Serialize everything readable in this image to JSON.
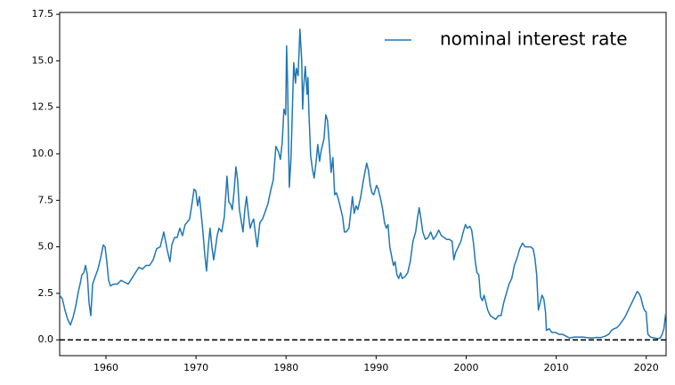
{
  "chart_data": {
    "type": "line",
    "x": [
      1954.86,
      1955.16,
      1955.45,
      1955.75,
      1956.05,
      1956.34,
      1956.64,
      1956.94,
      1957.13,
      1957.33,
      1957.53,
      1957.73,
      1957.93,
      1958.12,
      1958.32,
      1958.52,
      1958.81,
      1959.11,
      1959.41,
      1959.7,
      1959.9,
      1960.1,
      1960.3,
      1960.49,
      1960.89,
      1961.28,
      1961.68,
      1962.07,
      1962.47,
      1962.87,
      1963.26,
      1963.66,
      1964.05,
      1964.45,
      1964.84,
      1965.24,
      1965.63,
      1966.03,
      1966.42,
      1966.62,
      1966.82,
      1967.11,
      1967.31,
      1967.61,
      1967.9,
      1968.2,
      1968.5,
      1968.79,
      1968.99,
      1969.29,
      1969.58,
      1969.78,
      1969.98,
      1970.18,
      1970.38,
      1970.57,
      1970.77,
      1970.97,
      1971.17,
      1971.36,
      1971.56,
      1971.76,
      1971.96,
      1972.15,
      1972.35,
      1972.55,
      1972.85,
      1973.14,
      1973.44,
      1973.64,
      1973.83,
      1974.03,
      1974.23,
      1974.43,
      1974.62,
      1974.82,
      1975.02,
      1975.22,
      1975.42,
      1975.61,
      1975.81,
      1976.01,
      1976.21,
      1976.4,
      1976.6,
      1976.8,
      1977.09,
      1977.39,
      1977.69,
      1977.98,
      1978.28,
      1978.58,
      1978.87,
      1979.17,
      1979.37,
      1979.57,
      1979.76,
      1979.96,
      1980.06,
      1980.16,
      1980.36,
      1980.55,
      1980.65,
      1980.85,
      1981.05,
      1981.15,
      1981.34,
      1981.54,
      1981.74,
      1981.84,
      1981.94,
      1982.13,
      1982.33,
      1982.43,
      1982.53,
      1982.73,
      1982.92,
      1983.12,
      1983.32,
      1983.52,
      1983.72,
      1983.91,
      1984.21,
      1984.41,
      1984.6,
      1984.8,
      1985.0,
      1985.2,
      1985.4,
      1985.59,
      1985.79,
      1986.09,
      1986.28,
      1986.48,
      1986.68,
      1986.98,
      1987.17,
      1987.37,
      1987.57,
      1987.77,
      1987.96,
      1988.26,
      1988.56,
      1988.75,
      1988.95,
      1989.15,
      1989.35,
      1989.54,
      1989.74,
      1990.04,
      1990.24,
      1990.53,
      1990.73,
      1990.93,
      1991.13,
      1991.32,
      1991.52,
      1991.72,
      1991.92,
      1992.11,
      1992.31,
      1992.51,
      1992.71,
      1992.9,
      1993.2,
      1993.5,
      1993.79,
      1994.09,
      1994.39,
      1994.58,
      1994.78,
      1994.98,
      1995.18,
      1995.47,
      1995.77,
      1996.06,
      1996.36,
      1996.66,
      1996.95,
      1997.25,
      1997.55,
      1997.84,
      1998.14,
      1998.44,
      1998.63,
      1998.83,
      1999.13,
      1999.42,
      1999.62,
      1999.92,
      2000.12,
      2000.41,
      2000.61,
      2000.81,
      2001.01,
      2001.2,
      2001.4,
      2001.6,
      2001.8,
      2001.99,
      2002.19,
      2002.39,
      2002.68,
      2002.98,
      2003.28,
      2003.57,
      2003.87,
      2004.17,
      2004.46,
      2004.76,
      2005.06,
      2005.35,
      2005.65,
      2005.95,
      2006.25,
      2006.54,
      2006.84,
      2007.13,
      2007.43,
      2007.63,
      2007.83,
      2008.02,
      2008.22,
      2008.42,
      2008.62,
      2008.81,
      2008.91,
      2009.21,
      2009.51,
      2009.9,
      2010.3,
      2010.69,
      2011.09,
      2011.48,
      2011.98,
      2012.47,
      2012.96,
      2013.46,
      2013.95,
      2014.45,
      2014.94,
      2015.43,
      2015.83,
      2016.13,
      2016.42,
      2016.72,
      2017.02,
      2017.31,
      2017.61,
      2017.91,
      2018.2,
      2018.5,
      2018.79,
      2018.99,
      2019.19,
      2019.39,
      2019.58,
      2019.78,
      2019.98,
      2020.18,
      2020.47,
      2020.87,
      2021.26,
      2021.56,
      2021.76,
      2021.96,
      2022.15
    ],
    "series": [
      {
        "name": "nominal interest rate",
        "color": "#1f77b4",
        "values": [
          2.4,
          2.2,
          1.6,
          1.1,
          0.8,
          1.2,
          1.8,
          2.6,
          3.0,
          3.5,
          3.6,
          4.0,
          3.5,
          2.0,
          1.3,
          3.0,
          3.4,
          3.8,
          4.4,
          5.1,
          5.0,
          4.2,
          3.2,
          2.9,
          3.0,
          3.0,
          3.2,
          3.1,
          3.0,
          3.3,
          3.6,
          3.9,
          3.8,
          4.0,
          4.0,
          4.3,
          4.9,
          5.0,
          5.8,
          5.3,
          4.8,
          4.2,
          5.1,
          5.5,
          5.5,
          6.0,
          5.6,
          6.2,
          6.3,
          6.5,
          7.4,
          8.1,
          8.0,
          7.2,
          7.7,
          6.8,
          5.8,
          4.6,
          3.7,
          5.0,
          6.0,
          5.0,
          4.3,
          4.9,
          5.6,
          6.0,
          5.8,
          6.6,
          8.8,
          7.4,
          7.3,
          7.0,
          8.0,
          9.3,
          8.6,
          7.0,
          6.4,
          5.8,
          7.0,
          7.7,
          6.8,
          6.0,
          6.3,
          6.5,
          5.7,
          5.0,
          6.3,
          6.5,
          6.9,
          7.3,
          8.0,
          8.6,
          10.4,
          10.1,
          9.7,
          10.6,
          12.4,
          12.1,
          15.8,
          14.0,
          8.2,
          9.8,
          11.5,
          14.9,
          13.8,
          14.6,
          14.2,
          16.7,
          15.0,
          12.4,
          13.5,
          14.7,
          13.2,
          14.1,
          12.3,
          9.9,
          9.2,
          8.7,
          9.5,
          10.5,
          9.6,
          10.2,
          10.8,
          12.1,
          11.8,
          10.5,
          9.0,
          9.8,
          7.8,
          7.9,
          7.6,
          7.0,
          6.6,
          5.8,
          5.8,
          6.0,
          6.8,
          7.7,
          6.8,
          7.2,
          7.0,
          7.6,
          8.5,
          9.0,
          9.5,
          9.1,
          8.3,
          7.9,
          7.8,
          8.3,
          8.1,
          7.5,
          7.0,
          6.3,
          6.0,
          6.2,
          5.0,
          4.5,
          4.0,
          4.2,
          3.5,
          3.3,
          3.6,
          3.3,
          3.4,
          3.6,
          4.2,
          5.3,
          5.8,
          6.5,
          7.1,
          6.5,
          5.8,
          5.4,
          5.5,
          5.8,
          5.4,
          5.6,
          5.9,
          5.6,
          5.5,
          5.4,
          5.4,
          5.3,
          4.3,
          4.7,
          5.0,
          5.3,
          5.7,
          6.2,
          6.0,
          6.1,
          5.9,
          5.2,
          4.2,
          3.6,
          3.5,
          2.3,
          2.1,
          2.4,
          2.0,
          1.6,
          1.3,
          1.2,
          1.1,
          1.3,
          1.3,
          2.0,
          2.5,
          3.0,
          3.3,
          4.0,
          4.4,
          4.9,
          5.2,
          5.0,
          5.0,
          5.0,
          4.9,
          4.4,
          3.5,
          1.6,
          2.0,
          2.4,
          2.2,
          1.5,
          0.5,
          0.6,
          0.4,
          0.4,
          0.3,
          0.3,
          0.2,
          0.1,
          0.15,
          0.15,
          0.15,
          0.12,
          0.1,
          0.13,
          0.12,
          0.2,
          0.3,
          0.5,
          0.6,
          0.65,
          0.8,
          1.0,
          1.2,
          1.5,
          1.8,
          2.1,
          2.4,
          2.6,
          2.5,
          2.3,
          1.9,
          1.6,
          1.5,
          0.3,
          0.15,
          0.1,
          0.07,
          0.1,
          0.3,
          0.6,
          1.4
        ]
      }
    ],
    "xlim": [
      1954.86,
      2022.2
    ],
    "xticks": [
      1960,
      1970,
      1980,
      1990,
      2000,
      2010,
      2020
    ],
    "ylim": [
      -0.85,
      17.6
    ],
    "yticks": [
      {
        "value": 0,
        "label": "0.0"
      },
      2.5,
      {
        "value": 5,
        "label": "5.0"
      },
      7.5,
      {
        "value": 10,
        "label": "10.0"
      },
      12.5,
      {
        "value": 15,
        "label": "15.0"
      },
      17.5
    ],
    "hline": 0,
    "grid": false,
    "legend": "upper right"
  }
}
